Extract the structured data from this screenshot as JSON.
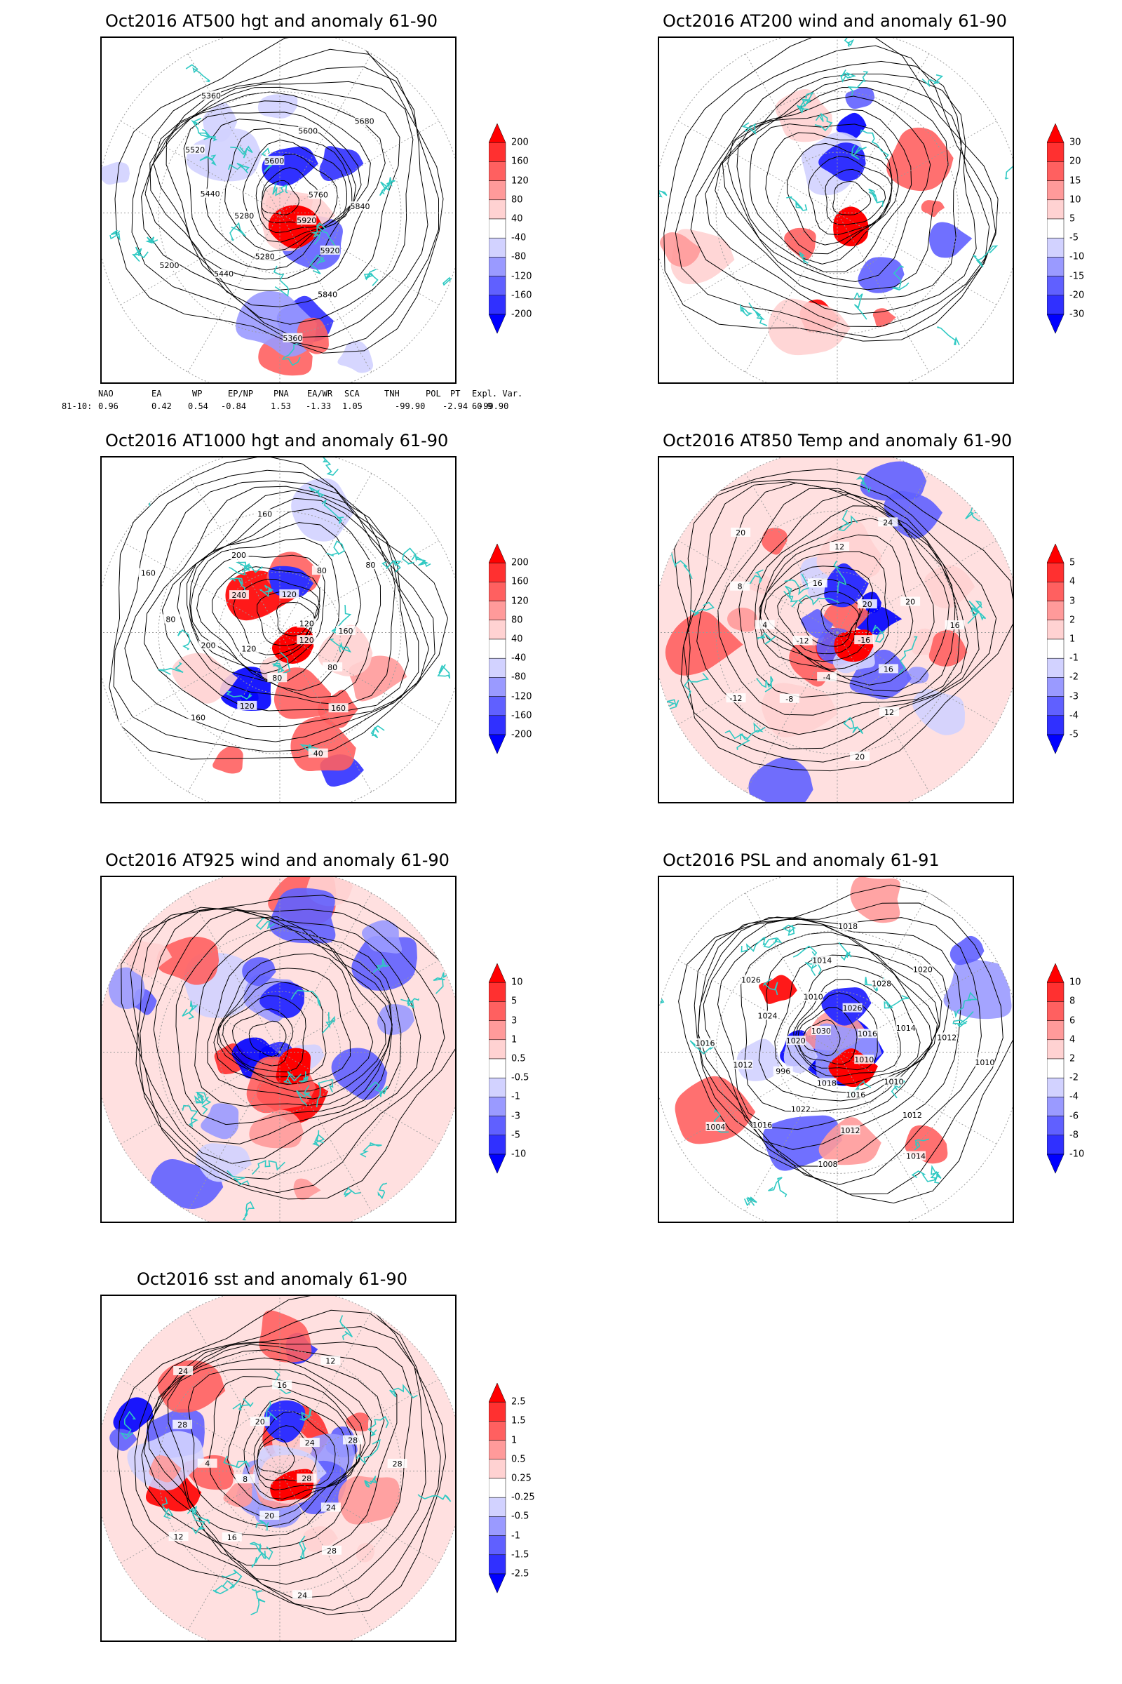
{
  "panels": [
    {
      "id": "at500",
      "title": "Oct2016 AT500 hgt and anomaly 61-90",
      "colorbar": [
        "200",
        "160",
        "120",
        "80",
        "40",
        "-40",
        "-80",
        "-120",
        "-160",
        "-200"
      ],
      "contour_labels": [
        "5920",
        "5920",
        "5840",
        "5360",
        "5280",
        "5440",
        "5200",
        "5280",
        "5440",
        "5520",
        "5360",
        "5600",
        "5600",
        "5680",
        "5760",
        "5840"
      ]
    },
    {
      "id": "at200",
      "title": "Oct2016 AT200 wind and anomaly 61-90",
      "colorbar": [
        "30",
        "20",
        "15",
        "10",
        "5",
        "-5",
        "-10",
        "-15",
        "-20",
        "-30"
      ],
      "contour_labels": []
    },
    {
      "id": "at1000",
      "title": "Oct2016 AT1000 hgt and anomaly 61-90",
      "colorbar": [
        "200",
        "160",
        "120",
        "80",
        "40",
        "-40",
        "-80",
        "-120",
        "-160",
        "-200"
      ],
      "contour_labels": [
        "120",
        "80",
        "160",
        "40",
        "80",
        "120",
        "160",
        "120",
        "200",
        "80",
        "160",
        "240",
        "200",
        "160",
        "120",
        "80",
        "80",
        "120",
        "160"
      ]
    },
    {
      "id": "at850",
      "title": "Oct2016 AT850 Temp and anomaly 61-90",
      "colorbar": [
        "5",
        "4",
        "3",
        "2",
        "1",
        "-1",
        "-2",
        "-3",
        "-4",
        "-5"
      ],
      "contour_labels": [
        "-16",
        "16",
        "12",
        "20",
        "-4",
        "-8",
        "-12",
        "-12",
        "4",
        "8",
        "20",
        "16",
        "12",
        "24",
        "20",
        "20",
        "16"
      ]
    },
    {
      "id": "at925",
      "title": "Oct2016 AT925 wind and anomaly 61-90",
      "colorbar": [
        "10",
        "5",
        "3",
        "1",
        "0.5",
        "-0.5",
        "-1",
        "-3",
        "-5",
        "-10"
      ],
      "contour_labels": []
    },
    {
      "id": "psl",
      "title": "Oct2016 PSL and anomaly 61-91",
      "colorbar": [
        "10",
        "8",
        "6",
        "4",
        "2",
        "-2",
        "-4",
        "-6",
        "-8",
        "-10"
      ],
      "contour_labels": [
        "1010",
        "1010",
        "1012",
        "1014",
        "1016",
        "1012",
        "1008",
        "1018",
        "1022",
        "1016",
        "1004",
        "996",
        "1012",
        "1016",
        "1020",
        "1024",
        "1026",
        "1030",
        "1010",
        "1014",
        "1018",
        "1026",
        "1028",
        "1020",
        "1016",
        "1014",
        "1012",
        "1010"
      ]
    },
    {
      "id": "sst",
      "title": "Oct2016 sst and anomaly 61-90",
      "colorbar": [
        "2.5",
        "1.5",
        "1",
        "0.5",
        "0.25",
        "-0.25",
        "-0.5",
        "-1",
        "-1.5",
        "-2.5"
      ],
      "contour_labels": [
        "28",
        "24",
        "28",
        "24",
        "20",
        "16",
        "12",
        "8",
        "4",
        "28",
        "24",
        "20",
        "16",
        "12",
        "24",
        "28",
        "28"
      ]
    }
  ],
  "teleconnection": {
    "headers": [
      "NAO",
      "EA",
      "WP",
      "EP/NP",
      "PNA",
      "EA/WR",
      "SCA",
      "TNH",
      "POL",
      "PT",
      "Expl. Var."
    ],
    "row_label": "81-10:",
    "values": [
      "0.96",
      "0.42",
      "0.54",
      "-0.84",
      "1.53",
      "-1.33",
      "1.05",
      "-99.90",
      "-2.94",
      "-99.90",
      "60.9"
    ]
  },
  "colors": {
    "coastline": "#2fc9c3",
    "positive": [
      "#ff0000",
      "#ff3030",
      "#ff6060",
      "#ff9a9a",
      "#ffd2d2"
    ],
    "negative": [
      "#d2d2ff",
      "#9a9aff",
      "#6060ff",
      "#3030ff",
      "#0000ff"
    ],
    "contour": "#000000",
    "grid": "#9a9a9a"
  }
}
